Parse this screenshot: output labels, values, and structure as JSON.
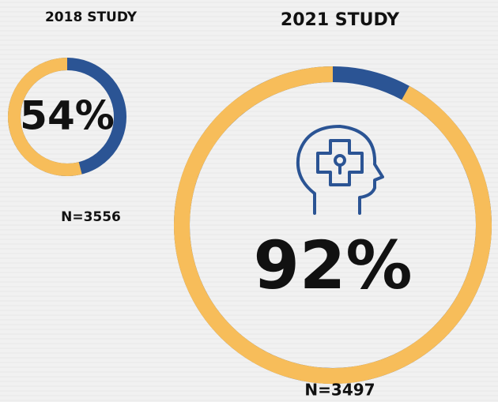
{
  "chart_data": [
    {
      "type": "donut",
      "title": "2018 STUDY",
      "values": [
        54
      ],
      "value_labels": [
        "54%"
      ],
      "sample": "N=3556",
      "color": "#f7bd5a",
      "rest_color": "#2b5494"
    },
    {
      "type": "donut",
      "title": "2021 STUDY",
      "values": [
        92
      ],
      "value_labels": [
        "92%"
      ],
      "sample": "N=3497",
      "color": "#f7bd5a",
      "rest_color": "#2b5494"
    }
  ]
}
